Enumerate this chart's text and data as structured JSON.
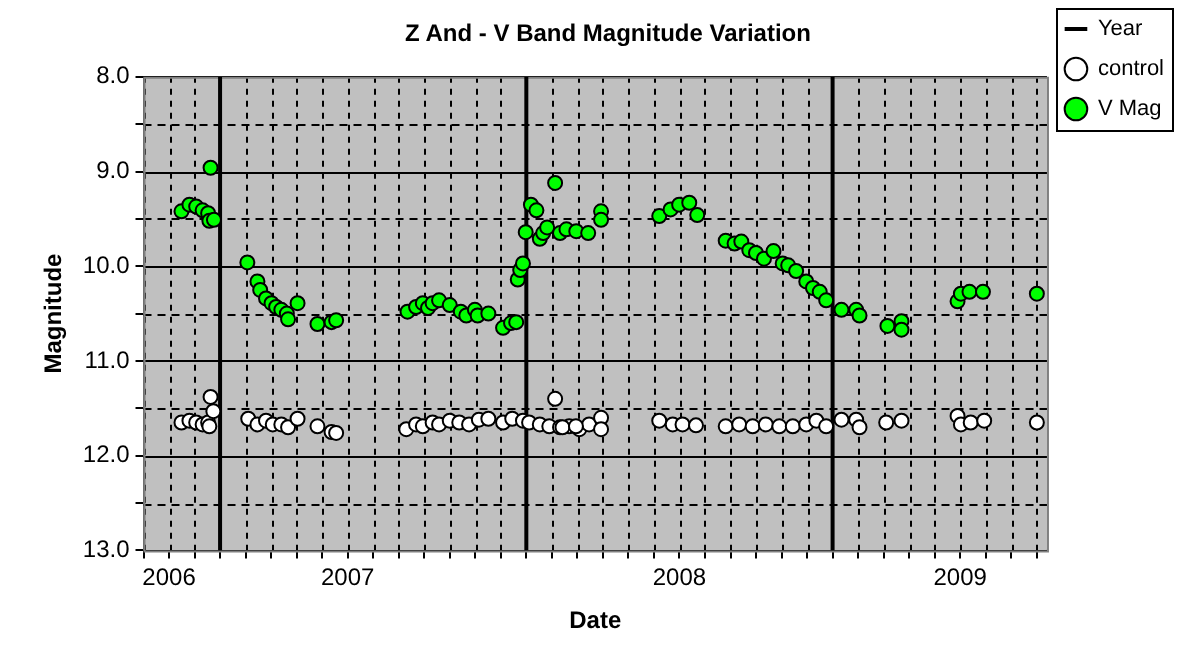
{
  "chart_data": {
    "type": "scatter",
    "title": "Z And - V Band Magnitude Variation",
    "xlabel": "Date",
    "ylabel": "Magnitude",
    "xlim": [
      2006.25,
      2009.2
    ],
    "xticks": [
      {
        "value": 2006.25,
        "label": null
      },
      {
        "value": 2006.3333,
        "label": "2006"
      },
      {
        "value": 2006.4167,
        "label": null
      },
      {
        "value": 2006.5,
        "label": null
      },
      {
        "value": 2006.5833,
        "label": null
      },
      {
        "value": 2006.6667,
        "label": null
      },
      {
        "value": 2006.75,
        "label": null
      },
      {
        "value": 2006.8333,
        "label": null
      },
      {
        "value": 2006.9167,
        "label": "2007"
      },
      {
        "value": 2007,
        "label": null
      },
      {
        "value": 2007.0833,
        "label": null
      },
      {
        "value": 2007.1667,
        "label": null
      },
      {
        "value": 2007.25,
        "label": null
      },
      {
        "value": 2007.3333,
        "label": null
      },
      {
        "value": 2007.4167,
        "label": null
      },
      {
        "value": 2007.5,
        "label": null
      },
      {
        "value": 2007.5833,
        "label": null
      },
      {
        "value": 2007.6667,
        "label": null
      },
      {
        "value": 2007.75,
        "label": null
      },
      {
        "value": 2007.8333,
        "label": null
      },
      {
        "value": 2007.9167,
        "label": null
      },
      {
        "value": 2008,
        "label": "2008"
      },
      {
        "value": 2008.0833,
        "label": null
      },
      {
        "value": 2008.1667,
        "label": null
      },
      {
        "value": 2008.25,
        "label": null
      },
      {
        "value": 2008.3333,
        "label": null
      },
      {
        "value": 2008.4167,
        "label": null
      },
      {
        "value": 2008.5,
        "label": null
      },
      {
        "value": 2008.5833,
        "label": null
      },
      {
        "value": 2008.6667,
        "label": null
      },
      {
        "value": 2008.75,
        "label": null
      },
      {
        "value": 2008.8333,
        "label": null
      },
      {
        "value": 2008.9167,
        "label": "2009"
      },
      {
        "value": 2009,
        "label": null
      },
      {
        "value": 2009.0833,
        "label": null
      },
      {
        "value": 2009.1667,
        "label": null
      }
    ],
    "ylim": [
      13,
      8
    ],
    "yticks": [
      {
        "value": 8,
        "label": "8.0"
      },
      {
        "value": 8.5,
        "label": null
      },
      {
        "value": 9,
        "label": "9.0"
      },
      {
        "value": 9.5,
        "label": null
      },
      {
        "value": 10,
        "label": "10.0"
      },
      {
        "value": 10.5,
        "label": null
      },
      {
        "value": 11,
        "label": "11.0"
      },
      {
        "value": 11.5,
        "label": null
      },
      {
        "value": 12,
        "label": "12.0"
      },
      {
        "value": 12.5,
        "label": null
      },
      {
        "value": 13,
        "label": "13.0"
      }
    ],
    "grid": true,
    "legend": "right",
    "marker": "circle",
    "ref_lines": [
      {
        "axis": "x",
        "value": 2006.5,
        "label": "Year",
        "color": "#000000"
      },
      {
        "axis": "x",
        "value": 2007.5,
        "color": "#000000"
      },
      {
        "axis": "x",
        "value": 2008.5,
        "color": "#000000"
      }
    ],
    "series": [
      {
        "name": "control",
        "color": "#ffffff",
        "x": [
          2006.374,
          2006.4,
          2006.422,
          2006.443,
          2006.461,
          2006.469,
          2006.478,
          2006.465,
          2006.592,
          2006.622,
          2006.65,
          2006.672,
          2006.7,
          2006.722,
          2006.753,
          2006.818,
          2006.864,
          2006.879,
          2007.108,
          2007.14,
          2007.162,
          2007.194,
          2007.215,
          2007.25,
          2007.281,
          2007.313,
          2007.345,
          2007.376,
          2007.424,
          2007.454,
          2007.489,
          2007.509,
          2007.544,
          2007.575,
          2007.594,
          2007.61,
          2007.64,
          2007.673,
          2007.705,
          2007.618,
          2007.662,
          2007.744,
          2007.744,
          2007.934,
          2007.978,
          2008.01,
          2008.054,
          2008.151,
          2008.195,
          2008.239,
          2008.282,
          2008.326,
          2008.37,
          2008.414,
          2008.447,
          2008.479,
          2008.529,
          2008.577,
          2008.588,
          2008.675,
          2008.725,
          2008.908,
          2008.919,
          2008.951,
          2008.995,
          2009.167
        ],
        "values": [
          11.65,
          11.63,
          11.65,
          11.67,
          11.65,
          11.38,
          11.53,
          11.69,
          11.61,
          11.67,
          11.63,
          11.67,
          11.67,
          11.7,
          11.61,
          11.69,
          11.75,
          11.76,
          11.72,
          11.67,
          11.69,
          11.65,
          11.67,
          11.63,
          11.65,
          11.67,
          11.62,
          11.61,
          11.65,
          11.61,
          11.63,
          11.65,
          11.67,
          11.69,
          11.4,
          11.7,
          11.69,
          11.72,
          11.67,
          11.7,
          11.69,
          11.6,
          11.72,
          11.63,
          11.67,
          11.67,
          11.68,
          11.69,
          11.67,
          11.69,
          11.67,
          11.69,
          11.69,
          11.67,
          11.63,
          11.69,
          11.62,
          11.62,
          11.7,
          11.65,
          11.63,
          11.58,
          11.67,
          11.65,
          11.63,
          11.65
        ]
      },
      {
        "name": "V Mag",
        "color": "#00ff00",
        "x": [
          2006.374,
          2006.4,
          2006.422,
          2006.443,
          2006.461,
          2006.469,
          2006.465,
          2006.48,
          2006.589,
          2006.622,
          2006.631,
          2006.65,
          2006.668,
          2006.683,
          2006.7,
          2006.718,
          2006.722,
          2006.753,
          2006.818,
          2006.864,
          2006.879,
          2007.112,
          2007.14,
          2007.162,
          2007.179,
          2007.194,
          2007.215,
          2007.25,
          2007.286,
          2007.304,
          2007.332,
          2007.341,
          2007.376,
          2007.424,
          2007.45,
          2007.467,
          2007.472,
          2007.48,
          2007.489,
          2007.498,
          2007.515,
          2007.533,
          2007.544,
          2007.555,
          2007.568,
          2007.594,
          2007.61,
          2007.631,
          2007.663,
          2007.702,
          2007.744,
          2007.744,
          2007.934,
          2007.971,
          2007.999,
          2008.032,
          2008.058,
          2008.151,
          2008.18,
          2008.202,
          2008.228,
          2008.25,
          2008.276,
          2008.307,
          2008.337,
          2008.355,
          2008.381,
          2008.414,
          2008.436,
          2008.458,
          2008.479,
          2008.529,
          2008.577,
          2008.588,
          2008.679,
          2008.725,
          2008.725,
          2008.908,
          2008.919,
          2008.947,
          2008.991,
          2009.167
        ],
        "values": [
          9.42,
          9.35,
          9.37,
          9.41,
          9.44,
          8.96,
          9.52,
          9.51,
          9.96,
          10.16,
          10.25,
          10.34,
          10.39,
          10.43,
          10.46,
          10.5,
          10.56,
          10.39,
          10.61,
          10.59,
          10.57,
          10.48,
          10.43,
          10.39,
          10.44,
          10.39,
          10.36,
          10.41,
          10.48,
          10.52,
          10.46,
          10.52,
          10.5,
          10.65,
          10.6,
          10.59,
          10.14,
          10.04,
          9.97,
          9.64,
          9.35,
          9.41,
          9.71,
          9.65,
          9.59,
          9.12,
          9.65,
          9.61,
          9.63,
          9.65,
          9.42,
          9.51,
          9.47,
          9.4,
          9.35,
          9.33,
          9.46,
          9.73,
          9.76,
          9.74,
          9.83,
          9.86,
          9.92,
          9.84,
          9.97,
          9.99,
          10.05,
          10.16,
          10.23,
          10.27,
          10.36,
          10.46,
          10.46,
          10.52,
          10.63,
          10.58,
          10.67,
          10.37,
          10.29,
          10.27,
          10.27,
          10.29
        ]
      }
    ]
  }
}
